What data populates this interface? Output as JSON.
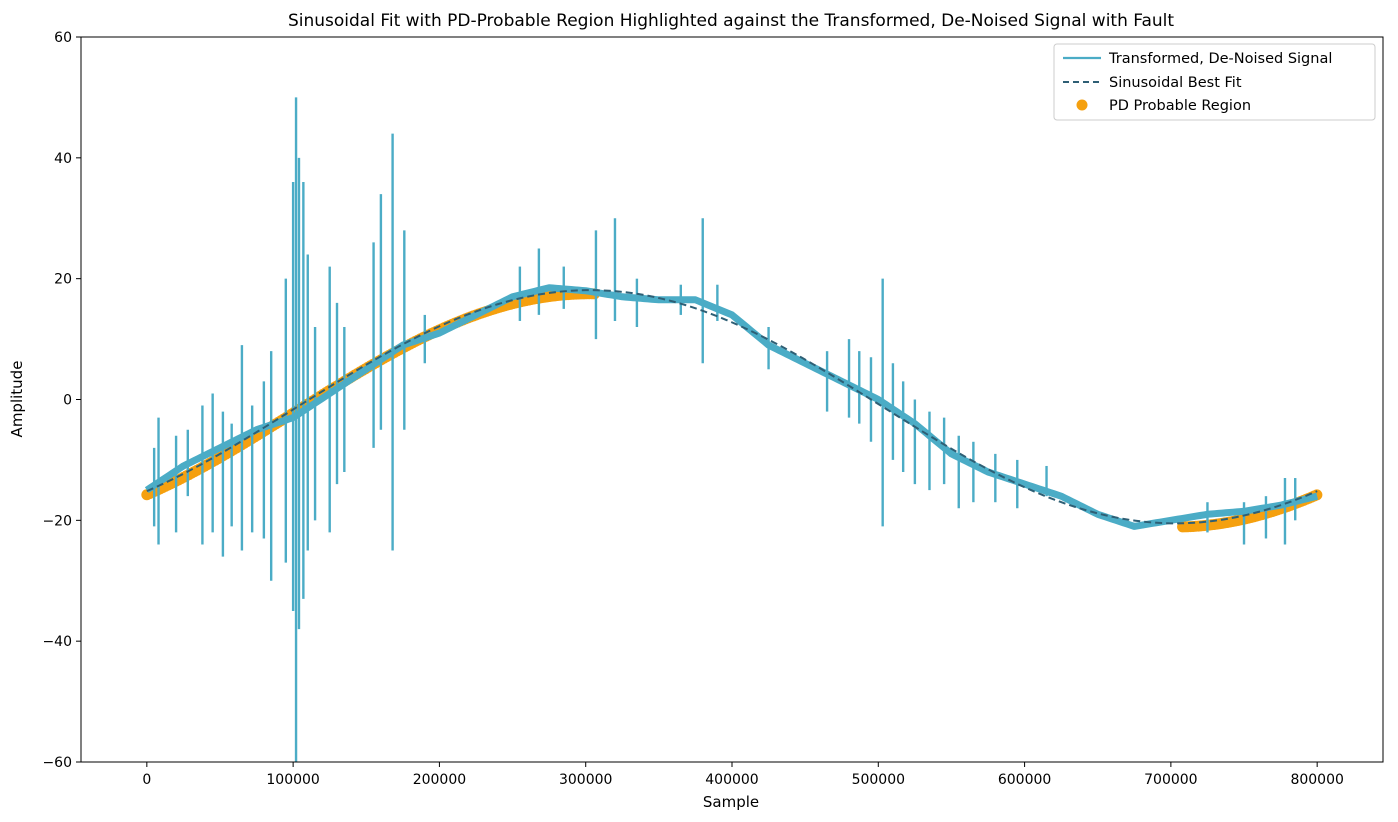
{
  "chart_data": {
    "type": "line",
    "title": "Sinusoidal Fit with PD-Probable Region Highlighted against the Transformed, De-Noised Signal with Fault",
    "xlabel": "Sample",
    "ylabel": "Amplitude",
    "xlim": [
      -45000,
      845000
    ],
    "ylim": [
      -60,
      60
    ],
    "xticks": [
      0,
      100000,
      200000,
      300000,
      400000,
      500000,
      600000,
      700000,
      800000
    ],
    "xtick_labels": [
      "0",
      "100000",
      "200000",
      "300000",
      "400000",
      "500000",
      "600000",
      "700000",
      "800000"
    ],
    "yticks": [
      -60,
      -40,
      -20,
      0,
      20,
      40,
      60
    ],
    "ytick_labels": [
      "−60",
      "−40",
      "−20",
      "0",
      "20",
      "40",
      "60"
    ],
    "grid": false,
    "legend_position": "top-right",
    "colors": {
      "signal": "#4bacc6",
      "fit": "#2e5f75",
      "pd": "#f5a00f"
    },
    "series": [
      {
        "name": "Transformed, De-Noised Signal",
        "style": "solid",
        "x": [
          0,
          25000,
          50000,
          75000,
          100000,
          125000,
          150000,
          175000,
          200000,
          225000,
          250000,
          275000,
          300000,
          325000,
          350000,
          375000,
          400000,
          425000,
          450000,
          475000,
          500000,
          525000,
          550000,
          575000,
          600000,
          625000,
          650000,
          675000,
          700000,
          725000,
          750000,
          775000,
          800000
        ],
        "y": [
          -15,
          -11,
          -8,
          -5,
          -3,
          1,
          5,
          9,
          11,
          14,
          17,
          18.5,
          18,
          17,
          16.5,
          16.5,
          14,
          9,
          6,
          3,
          0,
          -4,
          -9,
          -12,
          -14,
          -16,
          -19,
          -21,
          -20,
          -19,
          -18.5,
          -17.5,
          -16
        ],
        "spikes": [
          {
            "x": 5000,
            "min": -21,
            "max": -8
          },
          {
            "x": 8000,
            "min": -24,
            "max": -3
          },
          {
            "x": 20000,
            "min": -22,
            "max": -6
          },
          {
            "x": 28000,
            "min": -16,
            "max": -5
          },
          {
            "x": 38000,
            "min": -24,
            "max": -1
          },
          {
            "x": 45000,
            "min": -22,
            "max": 1
          },
          {
            "x": 52000,
            "min": -26,
            "max": -2
          },
          {
            "x": 58000,
            "min": -21,
            "max": -4
          },
          {
            "x": 65000,
            "min": -25,
            "max": 9
          },
          {
            "x": 72000,
            "min": -22,
            "max": -1
          },
          {
            "x": 80000,
            "min": -23,
            "max": 3
          },
          {
            "x": 85000,
            "min": -30,
            "max": 8
          },
          {
            "x": 95000,
            "min": -27,
            "max": 20
          },
          {
            "x": 100000,
            "min": -35,
            "max": 36
          },
          {
            "x": 102000,
            "min": -60,
            "max": 50
          },
          {
            "x": 104000,
            "min": -38,
            "max": 40
          },
          {
            "x": 107000,
            "min": -33,
            "max": 36
          },
          {
            "x": 110000,
            "min": -25,
            "max": 24
          },
          {
            "x": 115000,
            "min": -20,
            "max": 12
          },
          {
            "x": 125000,
            "min": -22,
            "max": 22
          },
          {
            "x": 130000,
            "min": -14,
            "max": 16
          },
          {
            "x": 135000,
            "min": -12,
            "max": 12
          },
          {
            "x": 155000,
            "min": -8,
            "max": 26
          },
          {
            "x": 160000,
            "min": -5,
            "max": 34
          },
          {
            "x": 168000,
            "min": -25,
            "max": 44
          },
          {
            "x": 176000,
            "min": -5,
            "max": 28
          },
          {
            "x": 190000,
            "min": 6,
            "max": 14
          },
          {
            "x": 255000,
            "min": 13,
            "max": 22
          },
          {
            "x": 268000,
            "min": 14,
            "max": 25
          },
          {
            "x": 285000,
            "min": 15,
            "max": 22
          },
          {
            "x": 307000,
            "min": 10,
            "max": 28
          },
          {
            "x": 320000,
            "min": 13,
            "max": 30
          },
          {
            "x": 335000,
            "min": 12,
            "max": 20
          },
          {
            "x": 365000,
            "min": 14,
            "max": 19
          },
          {
            "x": 380000,
            "min": 6,
            "max": 30
          },
          {
            "x": 390000,
            "min": 13,
            "max": 19
          },
          {
            "x": 425000,
            "min": 5,
            "max": 12
          },
          {
            "x": 465000,
            "min": -2,
            "max": 8
          },
          {
            "x": 480000,
            "min": -3,
            "max": 10
          },
          {
            "x": 487000,
            "min": -4,
            "max": 8
          },
          {
            "x": 495000,
            "min": -7,
            "max": 7
          },
          {
            "x": 503000,
            "min": -21,
            "max": 20
          },
          {
            "x": 510000,
            "min": -10,
            "max": 6
          },
          {
            "x": 517000,
            "min": -12,
            "max": 3
          },
          {
            "x": 525000,
            "min": -14,
            "max": 0
          },
          {
            "x": 535000,
            "min": -15,
            "max": -2
          },
          {
            "x": 545000,
            "min": -14,
            "max": -3
          },
          {
            "x": 555000,
            "min": -18,
            "max": -6
          },
          {
            "x": 565000,
            "min": -17,
            "max": -7
          },
          {
            "x": 580000,
            "min": -17,
            "max": -9
          },
          {
            "x": 595000,
            "min": -18,
            "max": -10
          },
          {
            "x": 615000,
            "min": -16,
            "max": -11
          },
          {
            "x": 725000,
            "min": -22,
            "max": -17
          },
          {
            "x": 750000,
            "min": -24,
            "max": -17
          },
          {
            "x": 765000,
            "min": -23,
            "max": -16
          },
          {
            "x": 778000,
            "min": -24,
            "max": -13
          },
          {
            "x": 785000,
            "min": -20,
            "max": -13
          }
        ]
      },
      {
        "name": "Sinusoidal Best Fit",
        "style": "dashed",
        "model": {
          "amplitude": 19.3,
          "period": 800000,
          "phase_zero_x": 103000,
          "offset": -1.2
        },
        "x_range": [
          0,
          800000
        ]
      },
      {
        "name": "PD Probable Region",
        "style": "scatter",
        "x_ranges": [
          [
            0,
            307000
          ],
          [
            708000,
            800000
          ]
        ],
        "y_offset": -0.6
      }
    ]
  }
}
